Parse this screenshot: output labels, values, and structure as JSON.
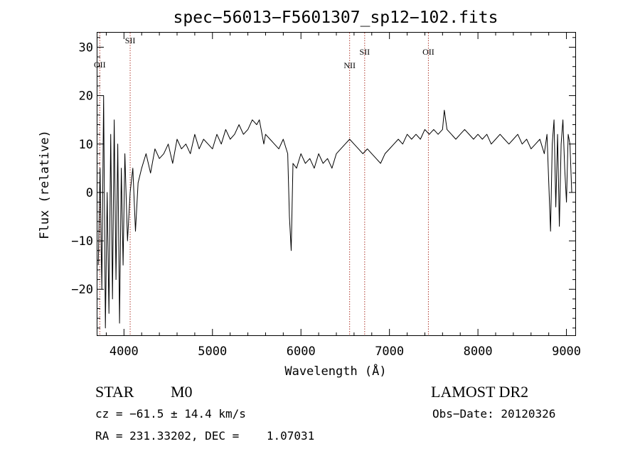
{
  "chart_data": {
    "type": "line",
    "title": "spec−56013−F5601307_sp12−102.fits",
    "xlabel": "Wavelength (Å)",
    "ylabel": "Flux (relative)",
    "xlim": [
      3700,
      9100
    ],
    "ylim": [
      -29.5,
      33
    ],
    "xticks": [
      4000,
      5000,
      6000,
      7000,
      8000,
      9000
    ],
    "yticks": [
      -20,
      -10,
      0,
      10,
      20,
      30
    ],
    "ytick_labels": [
      "−20",
      "−10",
      "0",
      "10",
      "20",
      "30"
    ],
    "grid": false,
    "series": [
      {
        "x": [
          3710,
          3730,
          3750,
          3770,
          3790,
          3810,
          3830,
          3850,
          3870,
          3890,
          3910,
          3930,
          3950,
          3970,
          3990,
          4010,
          4040,
          4070,
          4100,
          4130,
          4160,
          4200,
          4250,
          4300,
          4350,
          4400,
          4450,
          4500,
          4550,
          4600,
          4650,
          4700,
          4750,
          4800,
          4850,
          4900,
          4950,
          5000,
          5050,
          5100,
          5150,
          5200,
          5250,
          5300,
          5350,
          5400,
          5450,
          5500,
          5530,
          5560,
          5580,
          5600,
          5650,
          5700,
          5750,
          5800,
          5850,
          5870,
          5890,
          5910,
          5950,
          6000,
          6050,
          6100,
          6150,
          6200,
          6250,
          6300,
          6350,
          6400,
          6450,
          6500,
          6550,
          6600,
          6650,
          6700,
          6750,
          6800,
          6850,
          6900,
          6950,
          7000,
          7050,
          7100,
          7150,
          7200,
          7250,
          7300,
          7350,
          7400,
          7450,
          7500,
          7550,
          7600,
          7620,
          7650,
          7700,
          7750,
          7800,
          7850,
          7900,
          7950,
          8000,
          8050,
          8100,
          8150,
          8200,
          8250,
          8300,
          8350,
          8400,
          8450,
          8500,
          8550,
          8600,
          8650,
          8700,
          8750,
          8780,
          8800,
          8820,
          8840,
          8860,
          8880,
          8900,
          8920,
          8940,
          8960,
          8980,
          9000,
          9020,
          9040,
          9060
        ],
        "y": [
          -15,
          5,
          -20,
          20,
          -28,
          0,
          -25,
          12,
          -22,
          15,
          -18,
          10,
          -27,
          5,
          -15,
          8,
          -10,
          0,
          5,
          -8,
          2,
          5,
          8,
          4,
          9,
          7,
          8,
          10,
          6,
          11,
          9,
          10,
          8,
          12,
          9,
          11,
          10,
          9,
          12,
          10,
          13,
          11,
          12,
          14,
          12,
          13,
          15,
          14,
          15,
          12,
          10,
          12,
          11,
          10,
          9,
          11,
          8,
          -5,
          -12,
          6,
          5,
          8,
          6,
          7,
          5,
          8,
          6,
          7,
          5,
          8,
          9,
          10,
          11,
          10,
          9,
          8,
          9,
          8,
          7,
          6,
          8,
          9,
          10,
          11,
          10,
          12,
          11,
          12,
          11,
          13,
          12,
          13,
          12,
          13,
          17,
          13,
          12,
          11,
          12,
          13,
          12,
          11,
          12,
          11,
          12,
          10,
          11,
          12,
          11,
          10,
          11,
          12,
          10,
          11,
          9,
          10,
          11,
          8,
          12,
          2,
          -8,
          10,
          15,
          -3,
          12,
          -7,
          10,
          15,
          5,
          -2,
          12,
          10,
          0
        ]
      }
    ],
    "lines": [
      {
        "label": "OII",
        "x": 3727
      },
      {
        "label": "SII",
        "x": 4070
      },
      {
        "label": "NII",
        "x": 6550
      },
      {
        "label": "SII",
        "x": 6720
      },
      {
        "label": "OII",
        "x": 7440
      }
    ]
  },
  "info": {
    "class": "STAR",
    "subclass": "M0",
    "survey": "LAMOST DR2",
    "cz": "cz = −61.5 ± 14.4 km/s",
    "obs_date": "Obs−Date: 20120326",
    "coords": "RA = 231.33202, DEC =    1.07031"
  }
}
